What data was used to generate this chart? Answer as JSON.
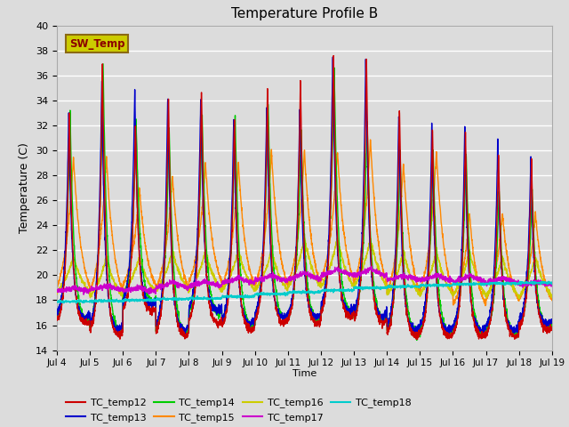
{
  "title": "Temperature Profile B",
  "xlabel": "Time",
  "ylabel": "Temperature (C)",
  "ylim": [
    14,
    40
  ],
  "background_color": "#dcdcdc",
  "plot_bg_color": "#dcdcdc",
  "grid_color": "white",
  "series_colors": {
    "TC_temp12": "#cc0000",
    "TC_temp13": "#0000cc",
    "TC_temp14": "#00cc00",
    "TC_temp15": "#ff8800",
    "TC_temp16": "#cccc00",
    "TC_temp17": "#cc00cc",
    "TC_temp18": "#00cccc"
  },
  "sw_temp_box_facecolor": "#cccc00",
  "sw_temp_text_color": "#8b0000",
  "sw_temp_edge_color": "#8b6914",
  "yticks": [
    14,
    16,
    18,
    20,
    22,
    24,
    26,
    28,
    30,
    32,
    34,
    36,
    38,
    40
  ],
  "xtick_labels": [
    "Jul 4",
    "Jul 5",
    "Jul 6",
    "Jul 7",
    "Jul 8",
    "Jul 9",
    "Jul 10",
    "Jul 11",
    "Jul 12",
    "Jul 13",
    "Jul 14",
    "Jul 15",
    "Jul 16",
    "Jul 17",
    "Jul 18",
    "Jul 19"
  ]
}
